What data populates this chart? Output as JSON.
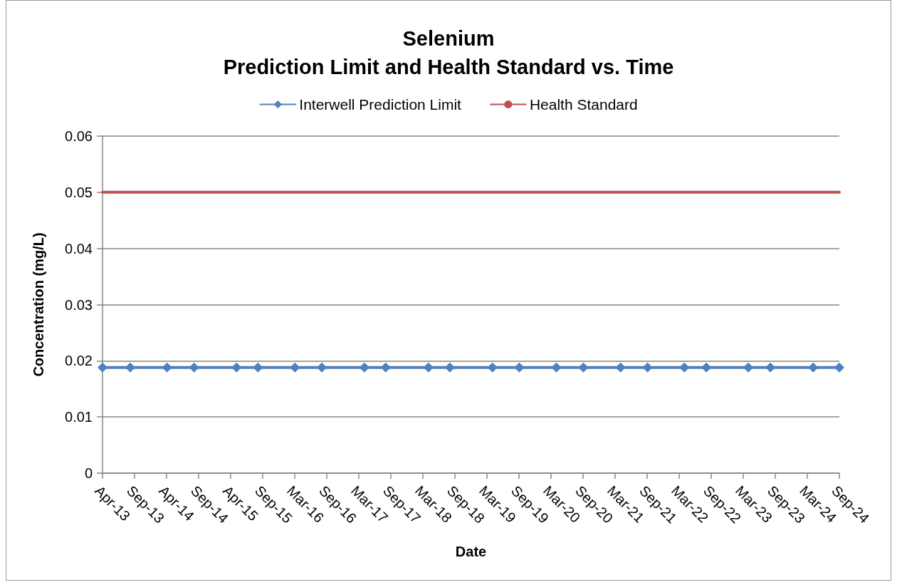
{
  "chart_data": {
    "type": "line",
    "title": "Selenium\nPrediction Limit and Health Standard vs. Time",
    "xlabel": "Date",
    "ylabel": "Concentration (mg/L)",
    "x": [
      "2013-04-01",
      "2013-09-06",
      "2014-04-04",
      "2014-09-05",
      "2015-05-05",
      "2015-09-04",
      "2016-04-02",
      "2016-09-02",
      "2017-05-03",
      "2017-09-01",
      "2018-05-03",
      "2018-09-02",
      "2019-05-03",
      "2019-10-03",
      "2020-05-01",
      "2020-10-02",
      "2021-05-02",
      "2021-10-03",
      "2022-05-01",
      "2022-09-03",
      "2023-04-30",
      "2023-09-03",
      "2024-05-04",
      "2024-09-30"
    ],
    "series": [
      {
        "name": "Interwell Prediction Limit",
        "color": "#4f81bd",
        "marker": "diamond",
        "values": [
          0.0188,
          0.0188,
          0.0188,
          0.0188,
          0.0188,
          0.0188,
          0.0188,
          0.0188,
          0.0188,
          0.0188,
          0.0188,
          0.0188,
          0.0188,
          0.0188,
          0.0188,
          0.0188,
          0.0188,
          0.0188,
          0.0188,
          0.0188,
          0.0188,
          0.0188,
          0.0188,
          0.0188
        ]
      },
      {
        "name": "Health Standard",
        "color": "#c0504d",
        "marker": "none",
        "x": [
          "2013-04-01",
          "2024-09-30"
        ],
        "values": [
          0.05,
          0.05
        ]
      }
    ],
    "xlim": [
      "2013-04-01",
      "2024-09-30"
    ],
    "xticks": [
      {
        "value": "2013-04-01",
        "label": "Apr-13"
      },
      {
        "value": "2013-09-30",
        "label": "Sep-13"
      },
      {
        "value": "2014-04-01",
        "label": "Apr-14"
      },
      {
        "value": "2014-09-30",
        "label": "Sep-14"
      },
      {
        "value": "2015-04-01",
        "label": "Apr-15"
      },
      {
        "value": "2015-09-30",
        "label": "Sep-15"
      },
      {
        "value": "2016-03-31",
        "label": "Mar-16"
      },
      {
        "value": "2016-09-30",
        "label": "Sep-16"
      },
      {
        "value": "2017-03-31",
        "label": "Mar-17"
      },
      {
        "value": "2017-09-30",
        "label": "Sep-17"
      },
      {
        "value": "2018-03-31",
        "label": "Mar-18"
      },
      {
        "value": "2018-09-30",
        "label": "Sep-18"
      },
      {
        "value": "2019-03-31",
        "label": "Mar-19"
      },
      {
        "value": "2019-09-30",
        "label": "Sep-19"
      },
      {
        "value": "2020-03-31",
        "label": "Mar-20"
      },
      {
        "value": "2020-09-30",
        "label": "Sep-20"
      },
      {
        "value": "2021-03-31",
        "label": "Mar-21"
      },
      {
        "value": "2021-09-30",
        "label": "Sep-21"
      },
      {
        "value": "2022-03-31",
        "label": "Mar-22"
      },
      {
        "value": "2022-09-30",
        "label": "Sep-22"
      },
      {
        "value": "2023-03-31",
        "label": "Mar-23"
      },
      {
        "value": "2023-09-30",
        "label": "Sep-23"
      },
      {
        "value": "2024-03-31",
        "label": "Mar-24"
      },
      {
        "value": "2024-09-30",
        "label": "Sep-24"
      }
    ],
    "ylim": [
      0,
      0.06
    ],
    "yticks": [
      0,
      0.01,
      0.02,
      0.03,
      0.04,
      0.05,
      0.06
    ],
    "grid": "y",
    "legend": "top",
    "line_style": "solid"
  }
}
